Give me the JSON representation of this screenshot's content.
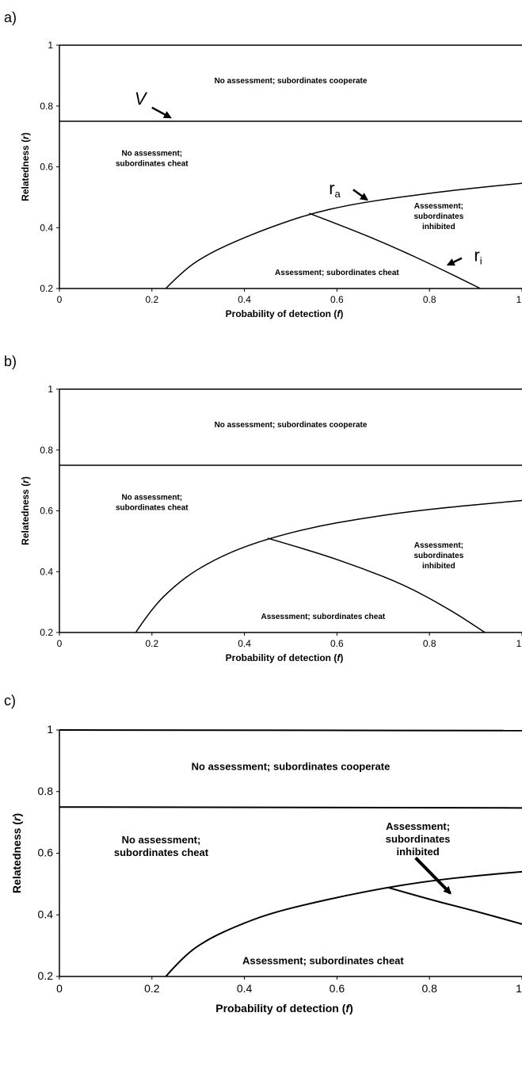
{
  "chart_data": [
    {
      "panel_label": "a)",
      "type": "line",
      "xlabel": "Probability of detection (",
      "xlabel_var": "f",
      "xlabel_close": ")",
      "ylabel": "Relatedness (",
      "ylabel_var": "r",
      "ylabel_close": ")",
      "xlim": [
        0,
        1
      ],
      "ylim": [
        0.2,
        1
      ],
      "xticks": [
        "0",
        "0.2",
        "0.4",
        "0.6",
        "0.8",
        "1"
      ],
      "yticks": [
        "0.2",
        "0.4",
        "0.6",
        "0.8",
        "1"
      ],
      "series": [
        {
          "x": [
            0,
            1
          ],
          "y": [
            1,
            1
          ]
        },
        {
          "x": [
            0,
            1
          ],
          "y": [
            0.75,
            0.75
          ]
        },
        {
          "x": [
            0.23,
            0.27,
            0.32,
            0.38,
            0.45,
            0.54,
            0.63,
            0.72,
            0.81,
            0.9,
            1.0
          ],
          "y": [
            0.2,
            0.262,
            0.312,
            0.355,
            0.398,
            0.445,
            0.476,
            0.497,
            0.515,
            0.531,
            0.546
          ]
        },
        {
          "x": [
            0.54,
            0.63,
            0.72,
            0.81,
            0.91
          ],
          "y": [
            0.447,
            0.395,
            0.338,
            0.275,
            0.2
          ]
        }
      ],
      "region_labels": [
        {
          "lines": [
            "No assessment; subordinates cooperate"
          ],
          "x": 0.5,
          "y": 0.885
        },
        {
          "lines": [
            "No assessment;",
            "subordinates cheat"
          ],
          "x": 0.2,
          "y": 0.63
        },
        {
          "lines": [
            "Assessment;",
            "subordinates",
            "inhibited"
          ],
          "x": 0.82,
          "y": 0.44
        },
        {
          "lines": [
            "Assessment; subordinates cheat"
          ],
          "x": 0.6,
          "y": 0.255
        }
      ],
      "annotations": [
        {
          "text": "V",
          "tx": 0.175,
          "ty": 0.805,
          "ax1": 0.2,
          "ay1": 0.795,
          "ax2": 0.24,
          "ay2": 0.762
        },
        {
          "text": "r",
          "sub": "a",
          "tx": 0.595,
          "ty": 0.51,
          "ax1": 0.635,
          "ay1": 0.525,
          "ax2": 0.665,
          "ay2": 0.492
        },
        {
          "text": "r",
          "sub": "i",
          "tx": 0.905,
          "ty": 0.29,
          "ax1": 0.87,
          "ay1": 0.3,
          "ax2": 0.84,
          "ay2": 0.278
        }
      ]
    },
    {
      "panel_label": "b)",
      "type": "line",
      "xlabel": "Probability of detection (",
      "xlabel_var": "f",
      "xlabel_close": ")",
      "ylabel": "Relatedness (",
      "ylabel_var": "r",
      "ylabel_close": ")",
      "xlim": [
        0,
        1
      ],
      "ylim": [
        0.2,
        1
      ],
      "xticks": [
        "0",
        "0.2",
        "0.4",
        "0.6",
        "0.8",
        "1"
      ],
      "yticks": [
        "0.2",
        "0.4",
        "0.6",
        "0.8",
        "1"
      ],
      "series": [
        {
          "x": [
            0,
            1
          ],
          "y": [
            1,
            1
          ]
        },
        {
          "x": [
            0,
            1
          ],
          "y": [
            0.75,
            0.75
          ]
        },
        {
          "x": [
            0.165,
            0.2,
            0.25,
            0.3,
            0.37,
            0.45,
            0.55,
            0.65,
            0.75,
            0.85,
            1.0
          ],
          "y": [
            0.2,
            0.28,
            0.355,
            0.41,
            0.465,
            0.508,
            0.547,
            0.574,
            0.596,
            0.613,
            0.634
          ]
        },
        {
          "x": [
            0.45,
            0.55,
            0.65,
            0.75,
            0.85,
            0.92
          ],
          "y": [
            0.51,
            0.466,
            0.414,
            0.354,
            0.27,
            0.2
          ]
        }
      ],
      "region_labels": [
        {
          "lines": [
            "No assessment; subordinates cooperate"
          ],
          "x": 0.5,
          "y": 0.885
        },
        {
          "lines": [
            "No assessment;",
            "subordinates cheat"
          ],
          "x": 0.2,
          "y": 0.63
        },
        {
          "lines": [
            "Assessment;",
            "subordinates",
            "inhibited"
          ],
          "x": 0.82,
          "y": 0.455
        },
        {
          "lines": [
            "Assessment; subordinates cheat"
          ],
          "x": 0.57,
          "y": 0.255
        }
      ],
      "annotations": []
    },
    {
      "panel_label": "c)",
      "type": "line",
      "xlabel": "Probability of detection (",
      "xlabel_var": "f",
      "xlabel_close": ")",
      "ylabel": "Relatedness (",
      "ylabel_var": "r",
      "ylabel_close": ")",
      "xlim": [
        0,
        1
      ],
      "ylim": [
        0.2,
        1
      ],
      "xticks": [
        "0",
        "0.2",
        "0.4",
        "0.6",
        "0.8",
        "1"
      ],
      "yticks": [
        "0.2",
        "0.4",
        "0.6",
        "0.8",
        "1"
      ],
      "series": [
        {
          "x": [
            0,
            1
          ],
          "y": [
            1,
            0.998
          ]
        },
        {
          "x": [
            0,
            1
          ],
          "y": [
            0.75,
            0.747
          ]
        },
        {
          "x": [
            0.23,
            0.27,
            0.32,
            0.38,
            0.45,
            0.53,
            0.62,
            0.71,
            0.8,
            0.9,
            1.0
          ],
          "y": [
            0.2,
            0.268,
            0.32,
            0.362,
            0.402,
            0.433,
            0.463,
            0.489,
            0.51,
            0.527,
            0.54
          ]
        },
        {
          "x": [
            0.71,
            0.8,
            0.9,
            1.0
          ],
          "y": [
            0.489,
            0.45,
            0.412,
            0.37
          ]
        }
      ],
      "region_labels": [
        {
          "lines": [
            "No assessment; subordinates cooperate"
          ],
          "x": 0.5,
          "y": 0.88
        },
        {
          "lines": [
            "No assessment;",
            "subordinates cheat"
          ],
          "x": 0.22,
          "y": 0.622
        },
        {
          "lines": [
            "Assessment;",
            "subordinates",
            "inhibited"
          ],
          "x": 0.775,
          "y": 0.645
        },
        {
          "lines": [
            "Assessment; subordinates cheat"
          ],
          "x": 0.57,
          "y": 0.25
        }
      ],
      "annotations": [
        {
          "text": "",
          "tx": 0,
          "ty": 0,
          "ax1": 0.77,
          "ay1": 0.585,
          "ax2": 0.845,
          "ay2": 0.47
        }
      ]
    }
  ]
}
